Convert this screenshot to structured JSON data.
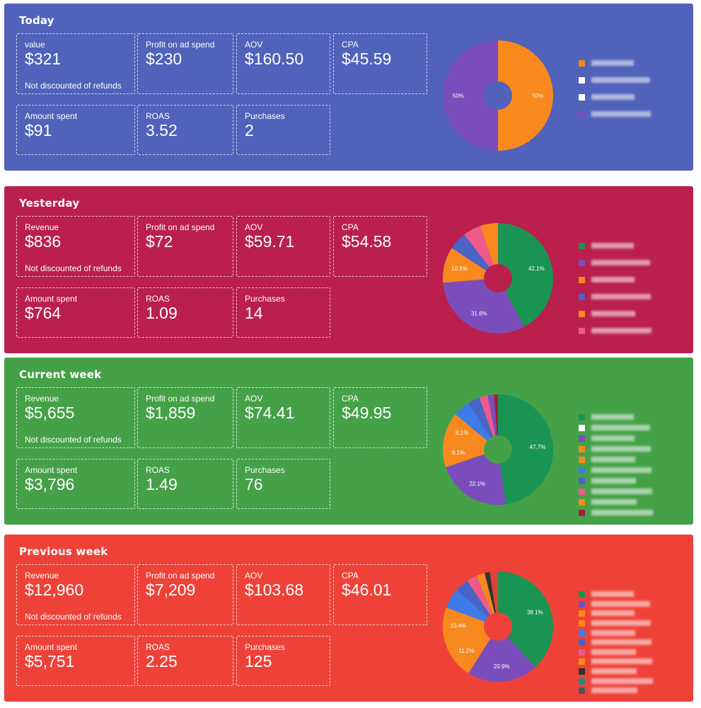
{
  "labels": {
    "value": "value",
    "revenue": "Revenue",
    "profit": "Profit on ad spend",
    "aov": "AOV",
    "cpa": "CPA",
    "spent": "Amount spent",
    "roas": "ROAS",
    "purchases": "Purchases",
    "note": "Not discounted of refunds"
  },
  "panels": [
    {
      "title": "Today",
      "bg": "#5062B9",
      "hole": "#5062B9",
      "first_label": "value",
      "value": "$321",
      "profit": "$230",
      "aov": "$160.50",
      "cpa": "$45.59",
      "spent": "$91",
      "roas": "3.52",
      "purchases": "2",
      "slices": [
        {
          "pct": 50.0,
          "color": "#F7891F",
          "label": "50%"
        },
        {
          "pct": 50.0,
          "color": "#7B4DBB",
          "label": "50%"
        }
      ],
      "legend": [
        "#F7891F",
        "#ffffff",
        "#ffffff",
        "#7B4DBB"
      ]
    },
    {
      "title": "Yesterday",
      "bg": "#BA1F4D",
      "hole": "#BA1F4D",
      "first_label": "Revenue",
      "value": "$836",
      "profit": "$72",
      "aov": "$59.71",
      "cpa": "$54.58",
      "spent": "$764",
      "roas": "1.09",
      "purchases": "14",
      "slices": [
        {
          "pct": 42.1,
          "color": "#1A9452",
          "label": "42.1%"
        },
        {
          "pct": 31.6,
          "color": "#7B4DBB",
          "label": "31.6%"
        },
        {
          "pct": 10.5,
          "color": "#F7891F",
          "label": "10.5%"
        },
        {
          "pct": 5.3,
          "color": "#4A63C7",
          "label": ""
        },
        {
          "pct": 5.3,
          "color": "#EE5A8A",
          "label": ""
        },
        {
          "pct": 5.2,
          "color": "#F7891F",
          "label": ""
        }
      ],
      "legend": [
        "#1A9452",
        "#7B4DBB",
        "#F7891F",
        "#4A63C7",
        "#F7891F",
        "#EE5A8A"
      ]
    },
    {
      "title": "Current week",
      "bg": "#45A148",
      "hole": "#45A148",
      "first_label": "Revenue",
      "value": "$5,655",
      "profit": "$1,859",
      "aov": "$74.41",
      "cpa": "$49.95",
      "spent": "$3,796",
      "roas": "1.49",
      "purchases": "76",
      "slices": [
        {
          "pct": 47.7,
          "color": "#1A9452",
          "label": "47.7%"
        },
        {
          "pct": 22.1,
          "color": "#7B4DBB",
          "label": "22.1%"
        },
        {
          "pct": 8.1,
          "color": "#F7891F",
          "label": "8.1%"
        },
        {
          "pct": 8.1,
          "color": "#F7891F",
          "label": "8.1%"
        },
        {
          "pct": 5.0,
          "color": "#3C7BE9",
          "label": ""
        },
        {
          "pct": 3.5,
          "color": "#4A63C7",
          "label": ""
        },
        {
          "pct": 2.5,
          "color": "#EE5A8A",
          "label": ""
        },
        {
          "pct": 1.8,
          "color": "#7B4DBB",
          "label": ""
        },
        {
          "pct": 1.2,
          "color": "#A0203C",
          "label": ""
        }
      ],
      "legend": [
        "#1A9452",
        "#ffffff",
        "#7B4DBB",
        "#F7891F",
        "#F7891F",
        "#3C7BE9",
        "#4A63C7",
        "#EE5A8A",
        "#F7891F",
        "#A0203C"
      ]
    },
    {
      "title": "Previous week",
      "bg": "#EE4239",
      "hole": "#EE4239",
      "first_label": "Revenue",
      "value": "$12,960",
      "profit": "$7,209",
      "aov": "$103.68",
      "cpa": "$46.01",
      "spent": "$5,751",
      "roas": "2.25",
      "purchases": "125",
      "slices": [
        {
          "pct": 38.1,
          "color": "#1A9452",
          "label": "38.1%"
        },
        {
          "pct": 20.9,
          "color": "#7B4DBB",
          "label": "20.9%"
        },
        {
          "pct": 11.2,
          "color": "#F7891F",
          "label": "11.2%"
        },
        {
          "pct": 10.4,
          "color": "#F7891F",
          "label": "10.4%"
        },
        {
          "pct": 6.0,
          "color": "#3C7BE9",
          "label": ""
        },
        {
          "pct": 4.0,
          "color": "#4A63C7",
          "label": ""
        },
        {
          "pct": 3.0,
          "color": "#EE5A8A",
          "label": ""
        },
        {
          "pct": 2.5,
          "color": "#F7891F",
          "label": ""
        },
        {
          "pct": 1.5,
          "color": "#333333",
          "label": ""
        },
        {
          "pct": 2.4,
          "color": "#DD4433",
          "label": ""
        }
      ],
      "legend": [
        "#1A9452",
        "#7B4DBB",
        "#F7891F",
        "#F7891F",
        "#3C7BE9",
        "#4A63C7",
        "#EE5A8A",
        "#F7891F",
        "#333333",
        "#2A8A7A",
        "#555555"
      ]
    }
  ]
}
